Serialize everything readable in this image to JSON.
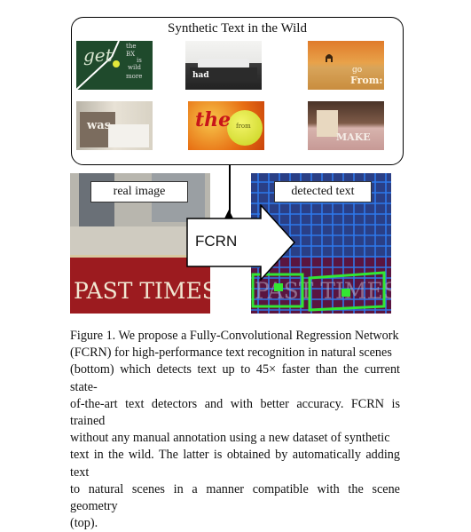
{
  "panel": {
    "title": "Synthetic Text in the Wild"
  },
  "thumbnails": [
    {
      "name": "chalkboard",
      "word": "get",
      "small_words": [
        "the",
        "BX",
        "is",
        "wild",
        "more"
      ]
    },
    {
      "name": "bed-dark",
      "word": "had"
    },
    {
      "name": "desert",
      "word": "go",
      "second_word": "From:"
    },
    {
      "name": "bedroom-light",
      "word": "was"
    },
    {
      "name": "tennis-ball",
      "word": "the",
      "second_word": "from"
    },
    {
      "name": "bedroom-pink",
      "word": "MAKE"
    }
  ],
  "real_image": {
    "label": "real image",
    "sign_text": "PAST TIMES"
  },
  "detected_image": {
    "label": "detected text",
    "sign_text": "PAST TIMES"
  },
  "arrow": {
    "label": "FCRN"
  },
  "caption": {
    "lines": [
      "Figure 1. We propose a Fully-Convolutional Regression Network",
      "(FCRN) for high-performance text recognition in natural scenes",
      "(bottom) which detects text up to 45× faster than the current state-",
      "of-the-art text detectors and with better accuracy. FCRN is trained",
      "without any manual annotation using a new dataset of synthetic",
      "text in the wild. The latter is obtained by automatically adding text",
      "to natural scenes in a manner compatible with the scene geometry",
      "(top)."
    ]
  },
  "colors": {
    "chalkboard": "#1f4a2c",
    "sign_red": "#9c1b1f",
    "detection_green": "#33e633",
    "grid_blue": "#1f5fd6"
  }
}
